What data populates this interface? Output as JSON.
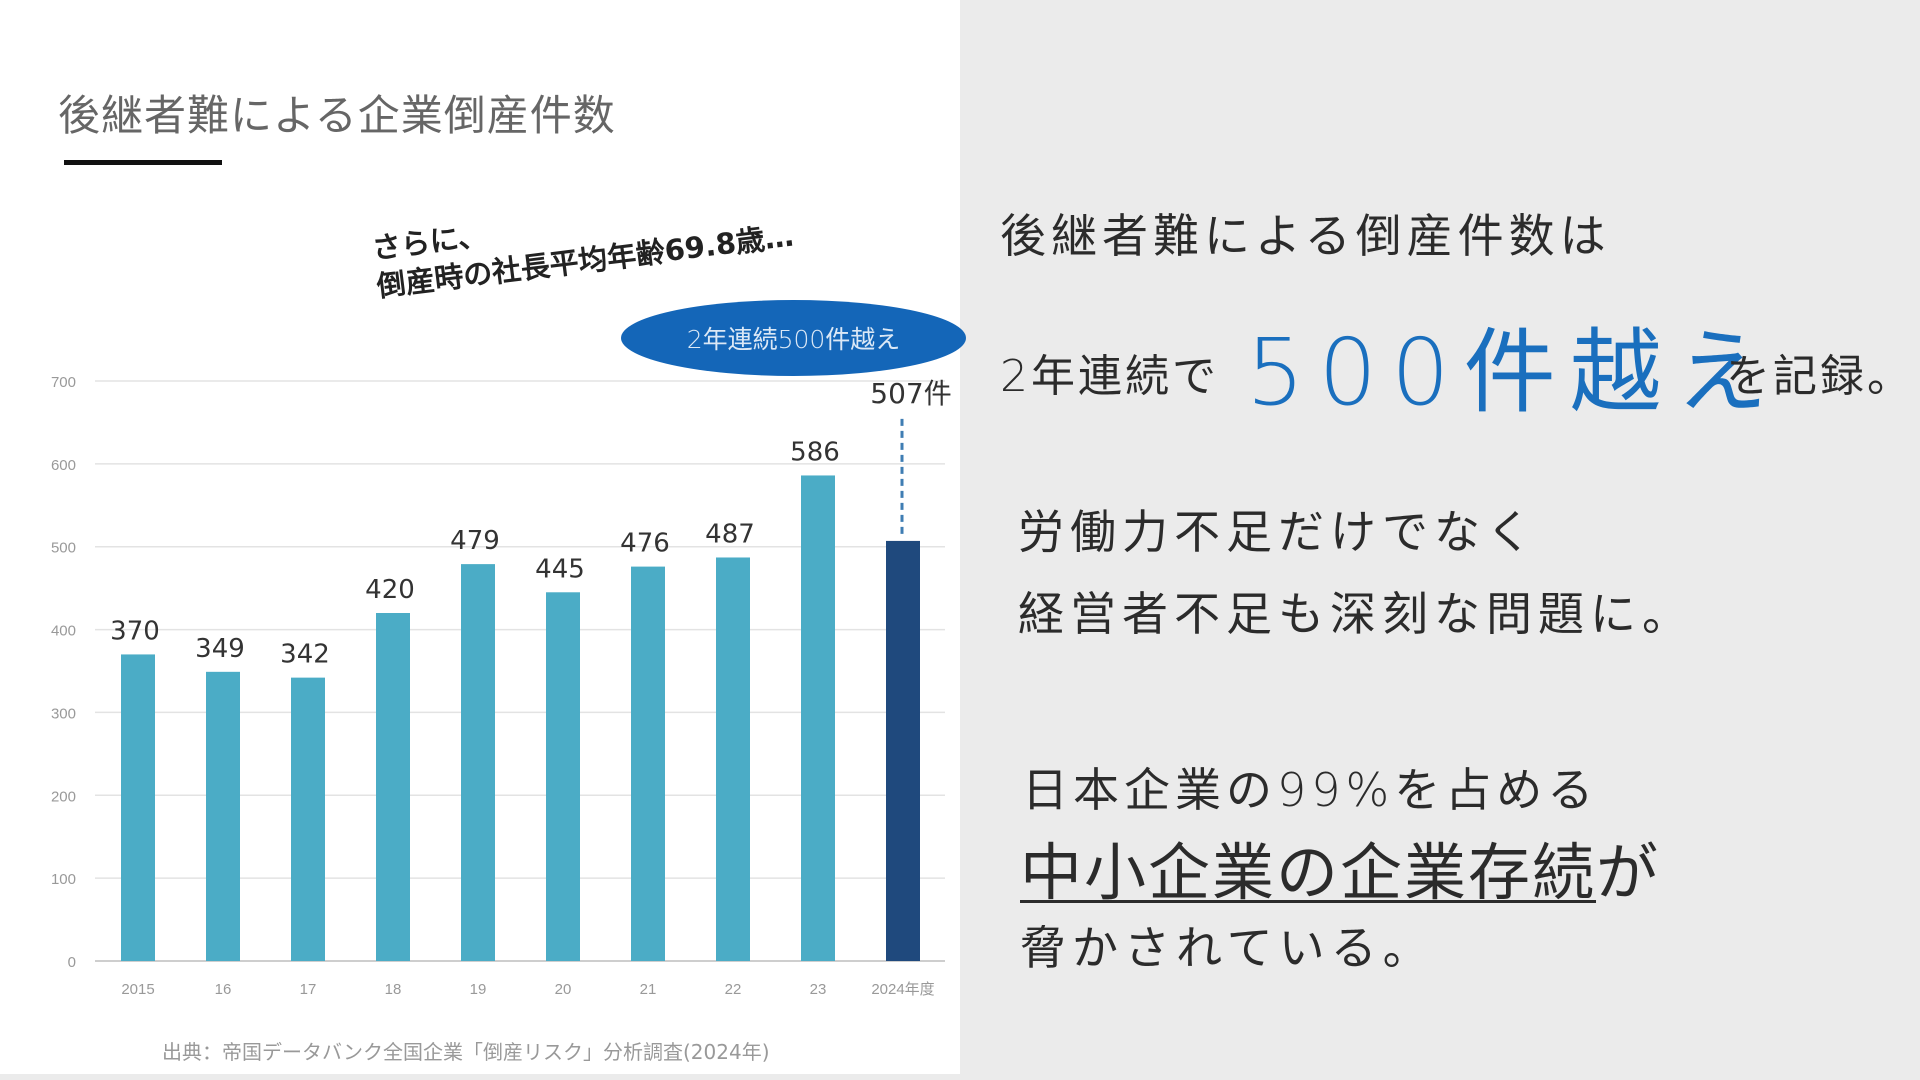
{
  "slide": {
    "title": "後継者難による企業倒産件数",
    "callout": {
      "line1": "さらに、",
      "line2": "倒産時の社長平均年齢69.8歳…",
      "oval": "2年連続500件越え"
    },
    "source": "出典：帝国データバンク全国企業「倒産リスク」分析調査(2024年)"
  },
  "colors": {
    "bar": "#4bacc6",
    "highlight_bar": "#1f497d",
    "accent": "#1a6fbe",
    "oval": "#1466b8"
  },
  "chart_data": {
    "type": "bar",
    "categories": [
      "2015",
      "16",
      "17",
      "18",
      "19",
      "20",
      "21",
      "22",
      "23",
      "2024年度"
    ],
    "values": [
      370,
      349,
      342,
      420,
      479,
      445,
      476,
      487,
      586,
      507
    ],
    "data_labels": [
      "370",
      "349",
      "342",
      "420",
      "479",
      "445",
      "476",
      "487",
      "586",
      "507件"
    ],
    "highlight_index": 9,
    "ylim": [
      0,
      700
    ],
    "yticks": [
      0,
      100,
      200,
      300,
      400,
      500,
      600,
      700
    ],
    "grid": true,
    "title": "",
    "xlabel": "",
    "ylabel": ""
  },
  "message": {
    "line1": "後継者難による倒産件数は",
    "line2_pre": "2年連続で",
    "line2_big": "500件越え",
    "line2_post": "を記録。",
    "line3": "労働力不足だけでなく",
    "line4": "経営者不足も深刻な問題に。",
    "line5": "日本企業の99%を占める",
    "line6_underlined": "中小企業の企業存続",
    "line6_post": "が",
    "line7": "脅かされている。"
  }
}
